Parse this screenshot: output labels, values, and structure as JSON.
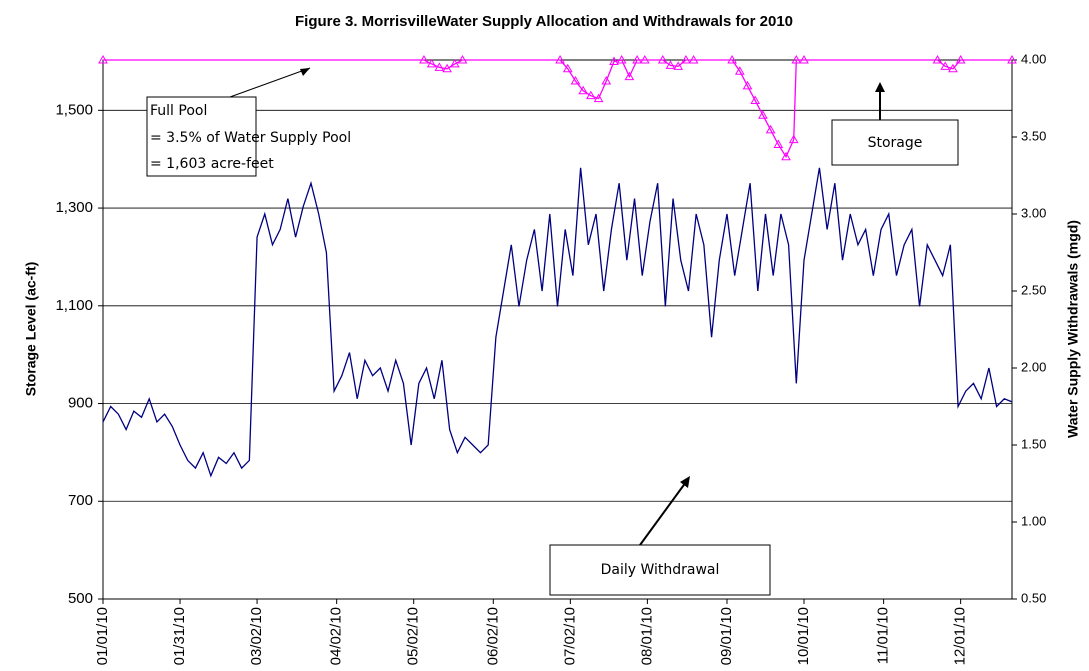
{
  "chart_data": {
    "type": "line",
    "title": "Figure 3. MorrisvilleWater Supply Allocation and Withdrawals for 2010",
    "y_label": "Storage Level (ac-ft)",
    "y2_label": "Water Supply Withdrawals (mgd)",
    "xlim": [
      0,
      354
    ],
    "xticks": [
      {
        "value": 0,
        "label": "01/01/10"
      },
      {
        "value": 30,
        "label": "01/31/10"
      },
      {
        "value": 60,
        "label": "03/02/10"
      },
      {
        "value": 91,
        "label": "04/02/10"
      },
      {
        "value": 121,
        "label": "05/02/10"
      },
      {
        "value": 152,
        "label": "06/02/10"
      },
      {
        "value": 182,
        "label": "07/02/10"
      },
      {
        "value": 212,
        "label": "08/01/10"
      },
      {
        "value": 243,
        "label": "09/01/10"
      },
      {
        "value": 273,
        "label": "10/01/10"
      },
      {
        "value": 304,
        "label": "11/01/10"
      },
      {
        "value": 334,
        "label": "12/01/10"
      }
    ],
    "ylim": [
      500,
      1603
    ],
    "yticks": [
      500,
      700,
      900,
      {
        "value": 1100,
        "label": "1,100"
      },
      {
        "value": 1300,
        "label": "1,300"
      },
      {
        "value": 1500,
        "label": "1,500"
      }
    ],
    "y2lim": [
      0.5,
      4.0
    ],
    "y2ticks": [
      {
        "value": 0.5,
        "label": "0.50"
      },
      {
        "value": 1,
        "label": "1.00"
      },
      {
        "value": 1.5,
        "label": "1.50"
      },
      {
        "value": 2,
        "label": "2.00"
      },
      {
        "value": 2.5,
        "label": "2.50"
      },
      {
        "value": 3,
        "label": "3.00"
      },
      {
        "value": 3.5,
        "label": "3.50"
      },
      {
        "value": 4,
        "label": "4.00"
      }
    ],
    "grid": true,
    "annotations": [
      "Full Pool",
      "= 3.5% of  Water Supply Pool",
      "= 1,603 acre-feet"
    ],
    "series": [
      {
        "name": "Storage",
        "color": "#ff00ff",
        "marker": "triangle",
        "x": [
          0,
          125,
          128,
          131,
          134,
          137,
          140,
          178,
          181,
          184,
          187,
          190,
          193,
          196,
          199,
          202,
          205,
          208,
          211,
          218,
          221,
          224,
          227,
          230,
          245,
          248,
          251,
          254,
          257,
          260,
          263,
          266,
          269,
          270,
          273,
          325,
          328,
          331,
          334,
          354
        ],
        "values": [
          1603,
          1603,
          1595,
          1588,
          1585,
          1595,
          1603,
          1603,
          1585,
          1560,
          1540,
          1530,
          1524,
          1560,
          1600,
          1603,
          1569,
          1603,
          1603,
          1603,
          1592,
          1590,
          1603,
          1603,
          1603,
          1580,
          1550,
          1520,
          1490,
          1460,
          1430,
          1405,
          1440,
          1603,
          1603,
          1603,
          1590,
          1585,
          1603,
          1603
        ]
      },
      {
        "name": "Daily Withdrawal",
        "color": "#000080",
        "axis": "y2",
        "x": [
          0,
          3,
          6,
          9,
          12,
          15,
          18,
          21,
          24,
          27,
          30,
          33,
          36,
          39,
          42,
          45,
          48,
          51,
          54,
          57,
          60,
          63,
          66,
          69,
          72,
          75,
          78,
          81,
          84,
          87,
          90,
          93,
          96,
          99,
          102,
          105,
          108,
          111,
          114,
          117,
          120,
          123,
          126,
          129,
          132,
          135,
          138,
          141,
          144,
          147,
          150,
          153,
          156,
          159,
          162,
          165,
          168,
          171,
          174,
          177,
          180,
          183,
          186,
          189,
          192,
          195,
          198,
          201,
          204,
          207,
          210,
          213,
          216,
          219,
          222,
          225,
          228,
          231,
          234,
          237,
          240,
          243,
          246,
          249,
          252,
          255,
          258,
          261,
          264,
          267,
          270,
          273,
          276,
          279,
          282,
          285,
          288,
          291,
          294,
          297,
          300,
          303,
          306,
          309,
          312,
          315,
          318,
          321,
          324,
          327,
          330,
          333,
          336,
          339,
          342,
          345,
          348,
          351,
          354
        ],
        "values": [
          1.65,
          1.75,
          1.7,
          1.6,
          1.72,
          1.68,
          1.8,
          1.65,
          1.7,
          1.62,
          1.5,
          1.4,
          1.35,
          1.45,
          1.3,
          1.42,
          1.38,
          1.45,
          1.35,
          1.4,
          2.85,
          3.0,
          2.8,
          2.9,
          3.1,
          2.85,
          3.05,
          3.2,
          3.0,
          2.75,
          1.85,
          1.95,
          2.1,
          1.8,
          2.05,
          1.95,
          2.0,
          1.85,
          2.05,
          1.9,
          1.5,
          1.9,
          2.0,
          1.8,
          2.05,
          1.6,
          1.45,
          1.55,
          1.5,
          1.45,
          1.5,
          2.2,
          2.5,
          2.8,
          2.4,
          2.7,
          2.9,
          2.5,
          3.0,
          2.4,
          2.9,
          2.6,
          3.3,
          2.8,
          3.0,
          2.5,
          2.9,
          3.2,
          2.7,
          3.1,
          2.6,
          2.95,
          3.2,
          2.4,
          3.1,
          2.7,
          2.5,
          3.0,
          2.8,
          2.2,
          2.7,
          3.0,
          2.6,
          2.9,
          3.2,
          2.5,
          3.0,
          2.6,
          3.0,
          2.8,
          1.9,
          2.7,
          3.0,
          3.3,
          2.9,
          3.2,
          2.7,
          3.0,
          2.8,
          2.9,
          2.6,
          2.9,
          3.0,
          2.6,
          2.8,
          2.9,
          2.4,
          2.8,
          2.7,
          2.6,
          2.8,
          1.75,
          1.85,
          1.9,
          1.8,
          2.0,
          1.75,
          1.8,
          1.78
        ]
      }
    ]
  }
}
